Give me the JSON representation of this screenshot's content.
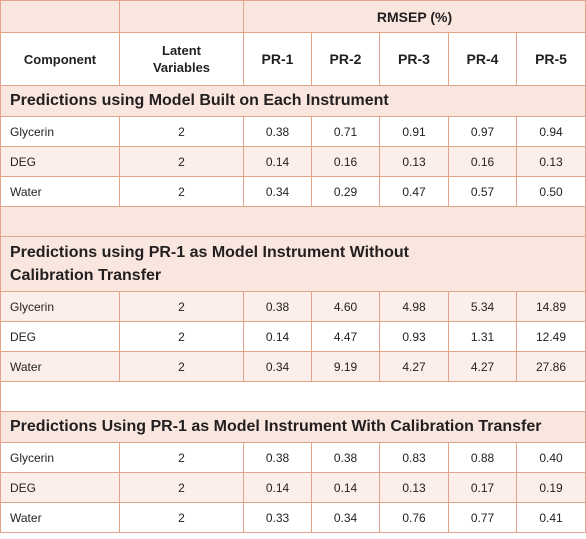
{
  "header": {
    "group_label": "RMSEP (%)",
    "component_label": "Component",
    "latent_label": "Latent Variables",
    "instruments": [
      "PR-1",
      "PR-2",
      "PR-3",
      "PR-4",
      "PR-5"
    ]
  },
  "sections": [
    {
      "title": "Predictions using Model Built on Each Instrument",
      "rows": [
        {
          "component": "Glycerin",
          "lv": "2",
          "values": [
            "0.38",
            "0.71",
            "0.91",
            "0.97",
            "0.94"
          ]
        },
        {
          "component": "DEG",
          "lv": "2",
          "values": [
            "0.14",
            "0.16",
            "0.13",
            "0.16",
            "0.13"
          ]
        },
        {
          "component": "Water",
          "lv": "2",
          "values": [
            "0.34",
            "0.29",
            "0.47",
            "0.57",
            "0.50"
          ]
        }
      ]
    },
    {
      "title": "Predictions using PR-1 as Model Instrument Without Calibration Transfer",
      "rows": [
        {
          "component": "Glycerin",
          "lv": "2",
          "values": [
            "0.38",
            "4.60",
            "4.98",
            "5.34",
            "14.89"
          ]
        },
        {
          "component": "DEG",
          "lv": "2",
          "values": [
            "0.14",
            "4.47",
            "0.93",
            "1.31",
            "12.49"
          ]
        },
        {
          "component": "Water",
          "lv": "2",
          "values": [
            "0.34",
            "9.19",
            "4.27",
            "4.27",
            "27.86"
          ]
        }
      ]
    },
    {
      "title": "Predictions Using PR-1 as Model Instrument With Calibration Transfer",
      "rows": [
        {
          "component": "Glycerin",
          "lv": "2",
          "values": [
            "0.38",
            "0.38",
            "0.83",
            "0.88",
            "0.40"
          ]
        },
        {
          "component": "DEG",
          "lv": "2",
          "values": [
            "0.14",
            "0.14",
            "0.13",
            "0.17",
            "0.19"
          ]
        },
        {
          "component": "Water",
          "lv": "2",
          "values": [
            "0.33",
            "0.34",
            "0.76",
            "0.77",
            "0.41"
          ]
        }
      ]
    }
  ]
}
